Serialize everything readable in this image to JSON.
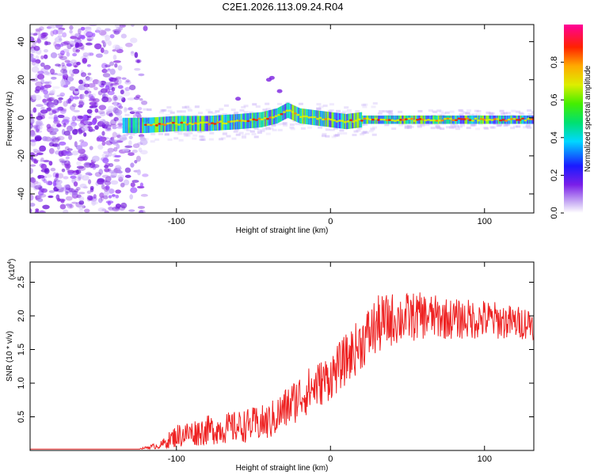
{
  "title": "C2E1.2026.113.09.24.R04",
  "chart_data": [
    {
      "type": "heatmap",
      "xlabel": "Height of straight line (km)",
      "ylabel": "Frequency (Hz)",
      "xlim": [
        -195,
        132
      ],
      "ylim": [
        -50,
        49
      ],
      "xticks": [
        -100,
        0,
        100
      ],
      "yticks": [
        -40,
        -20,
        0,
        20,
        40
      ],
      "xtick_labels": [
        "-100",
        "0",
        "100"
      ],
      "ytick_labels": [
        "-40",
        "-20",
        "0",
        "20",
        "40"
      ],
      "ridge_x": [
        -135,
        -120,
        -100,
        -80,
        -60,
        -45,
        -35,
        -28,
        -20,
        -10,
        0,
        10,
        20,
        40,
        60,
        80,
        100,
        120,
        132
      ],
      "ridge_y": [
        -4,
        -4,
        -3,
        -3,
        -2,
        -1,
        1,
        4,
        1,
        0,
        -1,
        -2,
        -1,
        -1,
        -1,
        -1,
        -1,
        -1,
        -1
      ],
      "colorbar": {
        "label": "Normalized spectral amplitude",
        "range": [
          0,
          1
        ],
        "ticks": [
          0.0,
          0.2,
          0.4,
          0.6,
          0.8
        ],
        "tick_labels": [
          "0.0",
          "0.2",
          "0.4",
          "0.6",
          "0.8"
        ]
      }
    },
    {
      "type": "line",
      "xlabel": "Height of straight line (km)",
      "ylabel": "SNR (10 * v/v)",
      "scale_label": "(x10",
      "scale_exponent": "4",
      "scale_close": ")",
      "xlim": [
        -195,
        132
      ],
      "ylim": [
        0,
        2.8
      ],
      "xticks": [
        -100,
        0,
        100
      ],
      "yticks": [
        0.5,
        1.0,
        1.5,
        2.0,
        2.5
      ],
      "xtick_labels": [
        "-100",
        "0",
        "100"
      ],
      "ytick_labels": [
        "0.5",
        "1.0",
        "1.5",
        "2.0",
        "2.5"
      ],
      "series": [
        {
          "name": "SNR",
          "color": "#ee2222",
          "trend_x": [
            -195,
            -125,
            -110,
            -100,
            -80,
            -60,
            -40,
            -30,
            -20,
            -10,
            0,
            10,
            20,
            30,
            40,
            60,
            80,
            100,
            120,
            132
          ],
          "trend_y": [
            0.02,
            0.02,
            0.08,
            0.22,
            0.3,
            0.35,
            0.42,
            0.6,
            0.8,
            0.95,
            1.1,
            1.35,
            1.6,
            1.85,
            1.95,
            2.0,
            1.95,
            1.95,
            1.9,
            1.9
          ],
          "noise_amp": [
            0,
            0,
            0.06,
            0.18,
            0.22,
            0.24,
            0.28,
            0.32,
            0.35,
            0.35,
            0.35,
            0.38,
            0.4,
            0.45,
            0.4,
            0.35,
            0.3,
            0.3,
            0.25,
            0.25
          ]
        }
      ]
    }
  ]
}
